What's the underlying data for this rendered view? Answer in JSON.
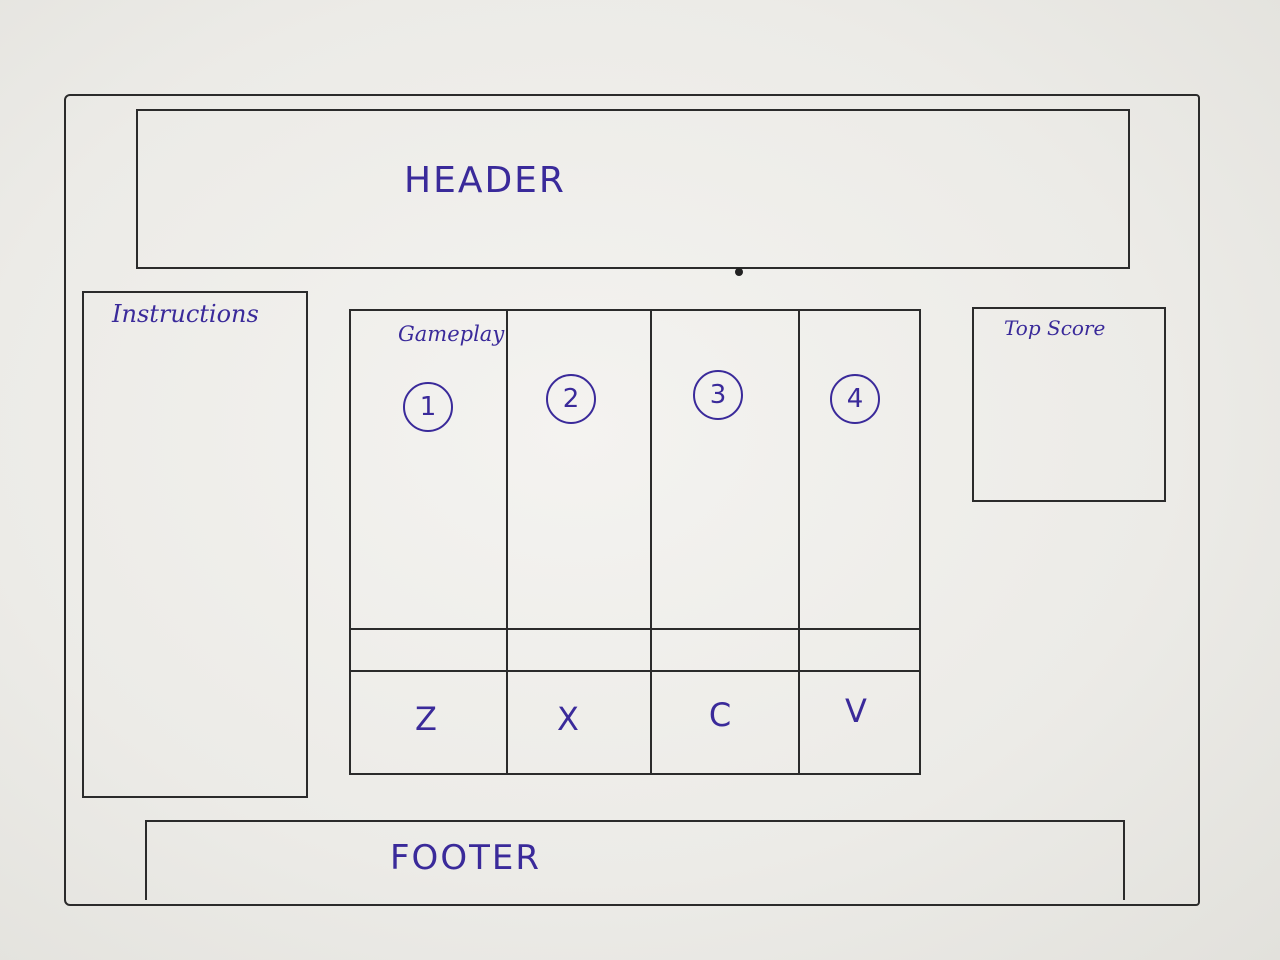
{
  "header": {
    "label": "HEADER"
  },
  "instructions": {
    "label": "Instructions"
  },
  "gameplay": {
    "label": "Gameplay",
    "lanes": [
      {
        "number": "1",
        "key": "Z"
      },
      {
        "number": "2",
        "key": "X"
      },
      {
        "number": "3",
        "key": "C"
      },
      {
        "number": "4",
        "key": "V"
      }
    ]
  },
  "top_score": {
    "label": "Top Score"
  },
  "footer": {
    "label": "FOOTER"
  },
  "colors": {
    "ink": "#3a2a9a",
    "pencil": "#2b2b2b",
    "paper": "#f0efeb"
  }
}
